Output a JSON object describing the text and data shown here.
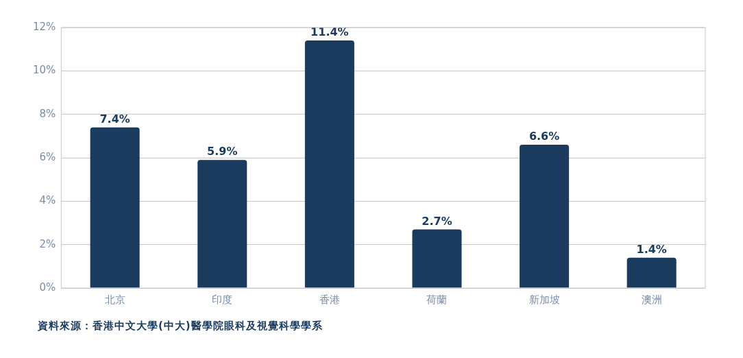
{
  "chart_data": {
    "type": "bar",
    "categories": [
      "北京",
      "印度",
      "香港",
      "荷蘭",
      "新加坡",
      "澳洲"
    ],
    "values": [
      7.4,
      5.9,
      11.4,
      2.7,
      6.6,
      1.4
    ],
    "value_labels": [
      "7.4%",
      "5.9%",
      "11.4%",
      "2.7%",
      "6.6%",
      "1.4%"
    ],
    "color": "#1a3a5e",
    "ylim": [
      0,
      12
    ],
    "yticks": [
      {
        "value": 0,
        "label": "0%"
      },
      {
        "value": 2,
        "label": "2%"
      },
      {
        "value": 4,
        "label": "4%"
      },
      {
        "value": 6,
        "label": "6%"
      },
      {
        "value": 8,
        "label": "8%"
      },
      {
        "value": 10,
        "label": "10%"
      },
      {
        "value": 12,
        "label": "12%"
      }
    ],
    "grid": "y",
    "annotations": [
      "資料來源：香港中文大學(中大)醫學院眼科及視覺科學學系"
    ]
  }
}
